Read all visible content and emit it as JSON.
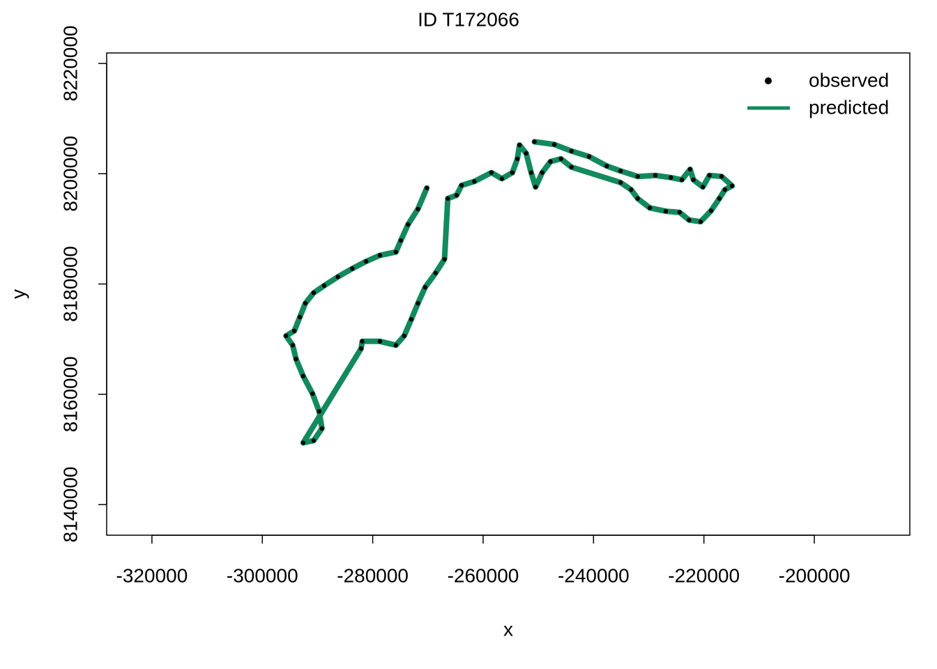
{
  "chart_data": {
    "type": "scatter",
    "title": "ID T172066",
    "x_label": "x",
    "y_label": "y",
    "xlim": [
      -328200,
      -182700
    ],
    "ylim": [
      8134440,
      8221900
    ],
    "xticks": [
      -320000,
      -300000,
      -280000,
      -260000,
      -240000,
      -220000,
      -200000
    ],
    "yticks": [
      8140000,
      8160000,
      8180000,
      8200000,
      8220000
    ],
    "legend": "topright",
    "series": [
      {
        "name": "observed",
        "color": "#000000",
        "mode": "points",
        "x": [
          -270200,
          -271800,
          -273600,
          -274900,
          -275800,
          -278700,
          -281200,
          -283700,
          -286300,
          -288800,
          -290700,
          -292200,
          -293200,
          -294200,
          -295700,
          -294500,
          -293900,
          -292600,
          -290900,
          -289700,
          -289200,
          -290700,
          -292600,
          -282100,
          -281900,
          -278700,
          -275800,
          -274300,
          -273000,
          -271800,
          -270500,
          -268600,
          -267000,
          -266400,
          -264800,
          -263900,
          -261600,
          -258500,
          -256600,
          -254700,
          -253800,
          -253400,
          -252200,
          -251300,
          -250500,
          -249300,
          -247800,
          -245900,
          -244000,
          -235100,
          -233200,
          -232000,
          -229800,
          -226900,
          -224400,
          -222700,
          -220600,
          -218700,
          -217200,
          -216200,
          -214900,
          -216800,
          -219000,
          -220200,
          -221900,
          -222500,
          -224000,
          -226000,
          -228800,
          -232000,
          -235100,
          -237600,
          -240800,
          -244000,
          -247100,
          -250700
        ],
        "values": [
          8197400,
          8193600,
          8190800,
          8187900,
          8185800,
          8185200,
          8184100,
          8182800,
          8181300,
          8179700,
          8178400,
          8176500,
          8174000,
          8171500,
          8170600,
          8168900,
          8166400,
          8163300,
          8160100,
          8156900,
          8153800,
          8151600,
          8151200,
          8168300,
          8169600,
          8169600,
          8168900,
          8170600,
          8173600,
          8176500,
          8179400,
          8182000,
          8184500,
          8195500,
          8196100,
          8197900,
          8198600,
          8200200,
          8199100,
          8200200,
          8202700,
          8205200,
          8203700,
          8200200,
          8197600,
          8200200,
          8202200,
          8202700,
          8201200,
          8198400,
          8197100,
          8195500,
          8193800,
          8193200,
          8193000,
          8191600,
          8191300,
          8193300,
          8195500,
          8197100,
          8197800,
          8199500,
          8199700,
          8197600,
          8198900,
          8200800,
          8198900,
          8199300,
          8199700,
          8199500,
          8200500,
          8201400,
          8203100,
          8204100,
          8205300,
          8205800
        ]
      },
      {
        "name": "predicted",
        "color": "#138a5e",
        "mode": "line",
        "x": [
          -270200,
          -271800,
          -273600,
          -274900,
          -275800,
          -278700,
          -281200,
          -283700,
          -286300,
          -288800,
          -290700,
          -292200,
          -293200,
          -294200,
          -295700,
          -294500,
          -293900,
          -292600,
          -290900,
          -289700,
          -289200,
          -290700,
          -292600,
          -282100,
          -281900,
          -278700,
          -275800,
          -274300,
          -273000,
          -271800,
          -270500,
          -268600,
          -267000,
          -266400,
          -264800,
          -263900,
          -261600,
          -258500,
          -256600,
          -254700,
          -253800,
          -253400,
          -252200,
          -251300,
          -250500,
          -249300,
          -247800,
          -245900,
          -244000,
          -235100,
          -233200,
          -232000,
          -229800,
          -226900,
          -224400,
          -222700,
          -220600,
          -218700,
          -217200,
          -216200,
          -214900,
          -216800,
          -219000,
          -220200,
          -221900,
          -222500,
          -224000,
          -226000,
          -228800,
          -232000,
          -235100,
          -237600,
          -240800,
          -244000,
          -247100,
          -250700
        ],
        "values": [
          8197400,
          8193600,
          8190800,
          8187900,
          8185800,
          8185200,
          8184100,
          8182800,
          8181300,
          8179700,
          8178400,
          8176500,
          8174000,
          8171500,
          8170600,
          8168900,
          8166400,
          8163300,
          8160100,
          8156900,
          8153800,
          8151600,
          8151200,
          8168300,
          8169600,
          8169600,
          8168900,
          8170600,
          8173600,
          8176500,
          8179400,
          8182000,
          8184500,
          8195500,
          8196100,
          8197900,
          8198600,
          8200200,
          8199100,
          8200200,
          8202700,
          8205200,
          8203700,
          8200200,
          8197600,
          8200200,
          8202200,
          8202700,
          8201200,
          8198400,
          8197100,
          8195500,
          8193800,
          8193200,
          8193000,
          8191600,
          8191300,
          8193300,
          8195500,
          8197100,
          8197800,
          8199500,
          8199700,
          8197600,
          8198900,
          8200800,
          8198900,
          8199300,
          8199700,
          8199500,
          8200500,
          8201400,
          8203100,
          8204100,
          8205300,
          8205800
        ]
      }
    ]
  }
}
